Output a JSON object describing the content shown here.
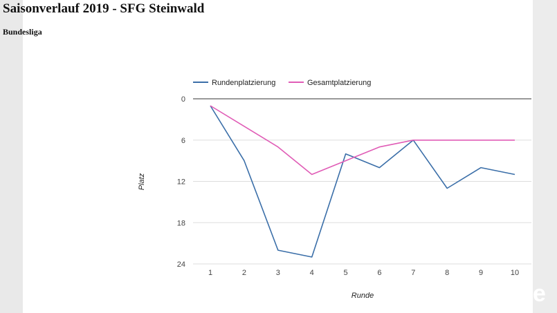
{
  "page": {
    "title": "Saisonverlauf 2019 - SFG Steinwald",
    "league": "Bundesliga",
    "corner_glyph": "e"
  },
  "chart_data": {
    "type": "line",
    "title": "",
    "xlabel": "Runde",
    "ylabel": "Platz",
    "x": [
      1,
      2,
      3,
      4,
      5,
      6,
      7,
      8,
      9,
      10
    ],
    "x_ticks": [
      "1",
      "2",
      "3",
      "4",
      "5",
      "6",
      "7",
      "8",
      "9",
      "10"
    ],
    "ylim": [
      0,
      24
    ],
    "y_inverted": true,
    "y_ticks": [
      "0",
      "6",
      "12",
      "18",
      "24"
    ],
    "grid": true,
    "legend_position": "top",
    "series": [
      {
        "name": "Rundenplatzierung",
        "color": "#3a6ea8",
        "values": [
          1,
          9,
          22,
          23,
          8,
          10,
          6,
          13,
          10,
          11
        ]
      },
      {
        "name": "Gesamtplatzierung",
        "color": "#e05cb6",
        "values": [
          1,
          4,
          7,
          11,
          9,
          7,
          6,
          6,
          6,
          6
        ]
      }
    ]
  }
}
